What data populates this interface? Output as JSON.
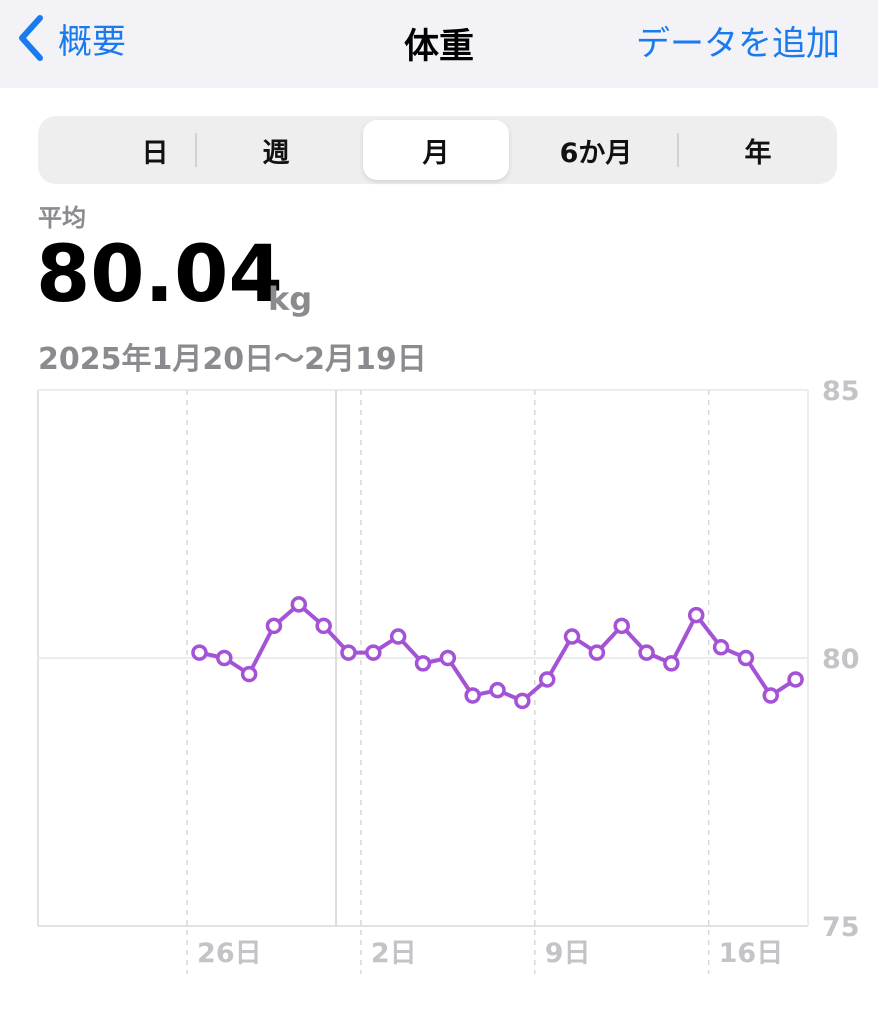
{
  "nav": {
    "back_label": "概要",
    "title": "体重",
    "add_label": "データを追加"
  },
  "segments": [
    {
      "label": "日",
      "selected": false
    },
    {
      "label": "週",
      "selected": false
    },
    {
      "label": "月",
      "selected": true
    },
    {
      "label": "6か月",
      "selected": false
    },
    {
      "label": "年",
      "selected": false
    }
  ],
  "summary": {
    "avg_label": "平均",
    "avg_value": "80.04",
    "unit": "kg",
    "date_range": "2025年1月20日～2月19日"
  },
  "colors": {
    "accent": "#1a7bef",
    "series": "#a452d6",
    "gray_text": "#8b8b8f",
    "axis_text": "#c4c4c8"
  },
  "chart_data": {
    "type": "line",
    "ylim": [
      75,
      85
    ],
    "y_ticks": [
      "85",
      "80",
      "75"
    ],
    "x_ticks": [
      "26日",
      "2日",
      "9日",
      "16日"
    ],
    "x_range": [
      "2025-01-20",
      "2025-02-19"
    ],
    "x_tick_dates": [
      "2025-01-26",
      "2025-02-02",
      "2025-02-09",
      "2025-02-16"
    ],
    "series": [
      {
        "dates": [
          "2025-01-26",
          "2025-01-27",
          "2025-01-28",
          "2025-01-29",
          "2025-01-30",
          "2025-01-31",
          "2025-02-01",
          "2025-02-02",
          "2025-02-03",
          "2025-02-04",
          "2025-02-05",
          "2025-02-06",
          "2025-02-07",
          "2025-02-08",
          "2025-02-09",
          "2025-02-10",
          "2025-02-11",
          "2025-02-12",
          "2025-02-13",
          "2025-02-14",
          "2025-02-15",
          "2025-02-16",
          "2025-02-17",
          "2025-02-18",
          "2025-02-19"
        ],
        "values": [
          80.1,
          80.0,
          79.7,
          80.6,
          81.0,
          80.6,
          80.1,
          80.1,
          80.4,
          79.9,
          80.0,
          79.3,
          79.4,
          79.2,
          79.6,
          80.4,
          80.1,
          80.6,
          80.1,
          79.9,
          80.8,
          80.2,
          80.0,
          79.3,
          79.6
        ]
      }
    ]
  }
}
